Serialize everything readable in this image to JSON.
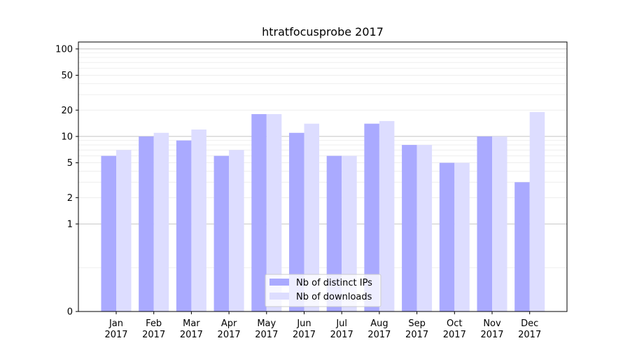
{
  "chart_data": {
    "type": "bar",
    "title": "htratfocusprobe 2017",
    "xlabel": "",
    "ylabel": "",
    "yscale": "symlog",
    "ylim": [
      0,
      120
    ],
    "yticks": [
      0,
      1,
      2,
      5,
      10,
      20,
      50,
      100
    ],
    "categories": [
      "Jan\n2017",
      "Feb\n2017",
      "Mar\n2017",
      "Apr\n2017",
      "May\n2017",
      "Jun\n2017",
      "Jul\n2017",
      "Aug\n2017",
      "Sep\n2017",
      "Oct\n2017",
      "Nov\n2017",
      "Dec\n2017"
    ],
    "series": [
      {
        "name": "Nb of distinct IPs",
        "color": "#aaaaff",
        "values": [
          6,
          10,
          9,
          6,
          18,
          11,
          6,
          14,
          8,
          5,
          10,
          3
        ]
      },
      {
        "name": "Nb of downloads",
        "color": "#ddddff",
        "values": [
          7,
          11,
          12,
          7,
          18,
          14,
          6,
          15,
          8,
          5,
          10,
          19
        ]
      }
    ],
    "grid": true,
    "legend_position": "bottom-center"
  }
}
